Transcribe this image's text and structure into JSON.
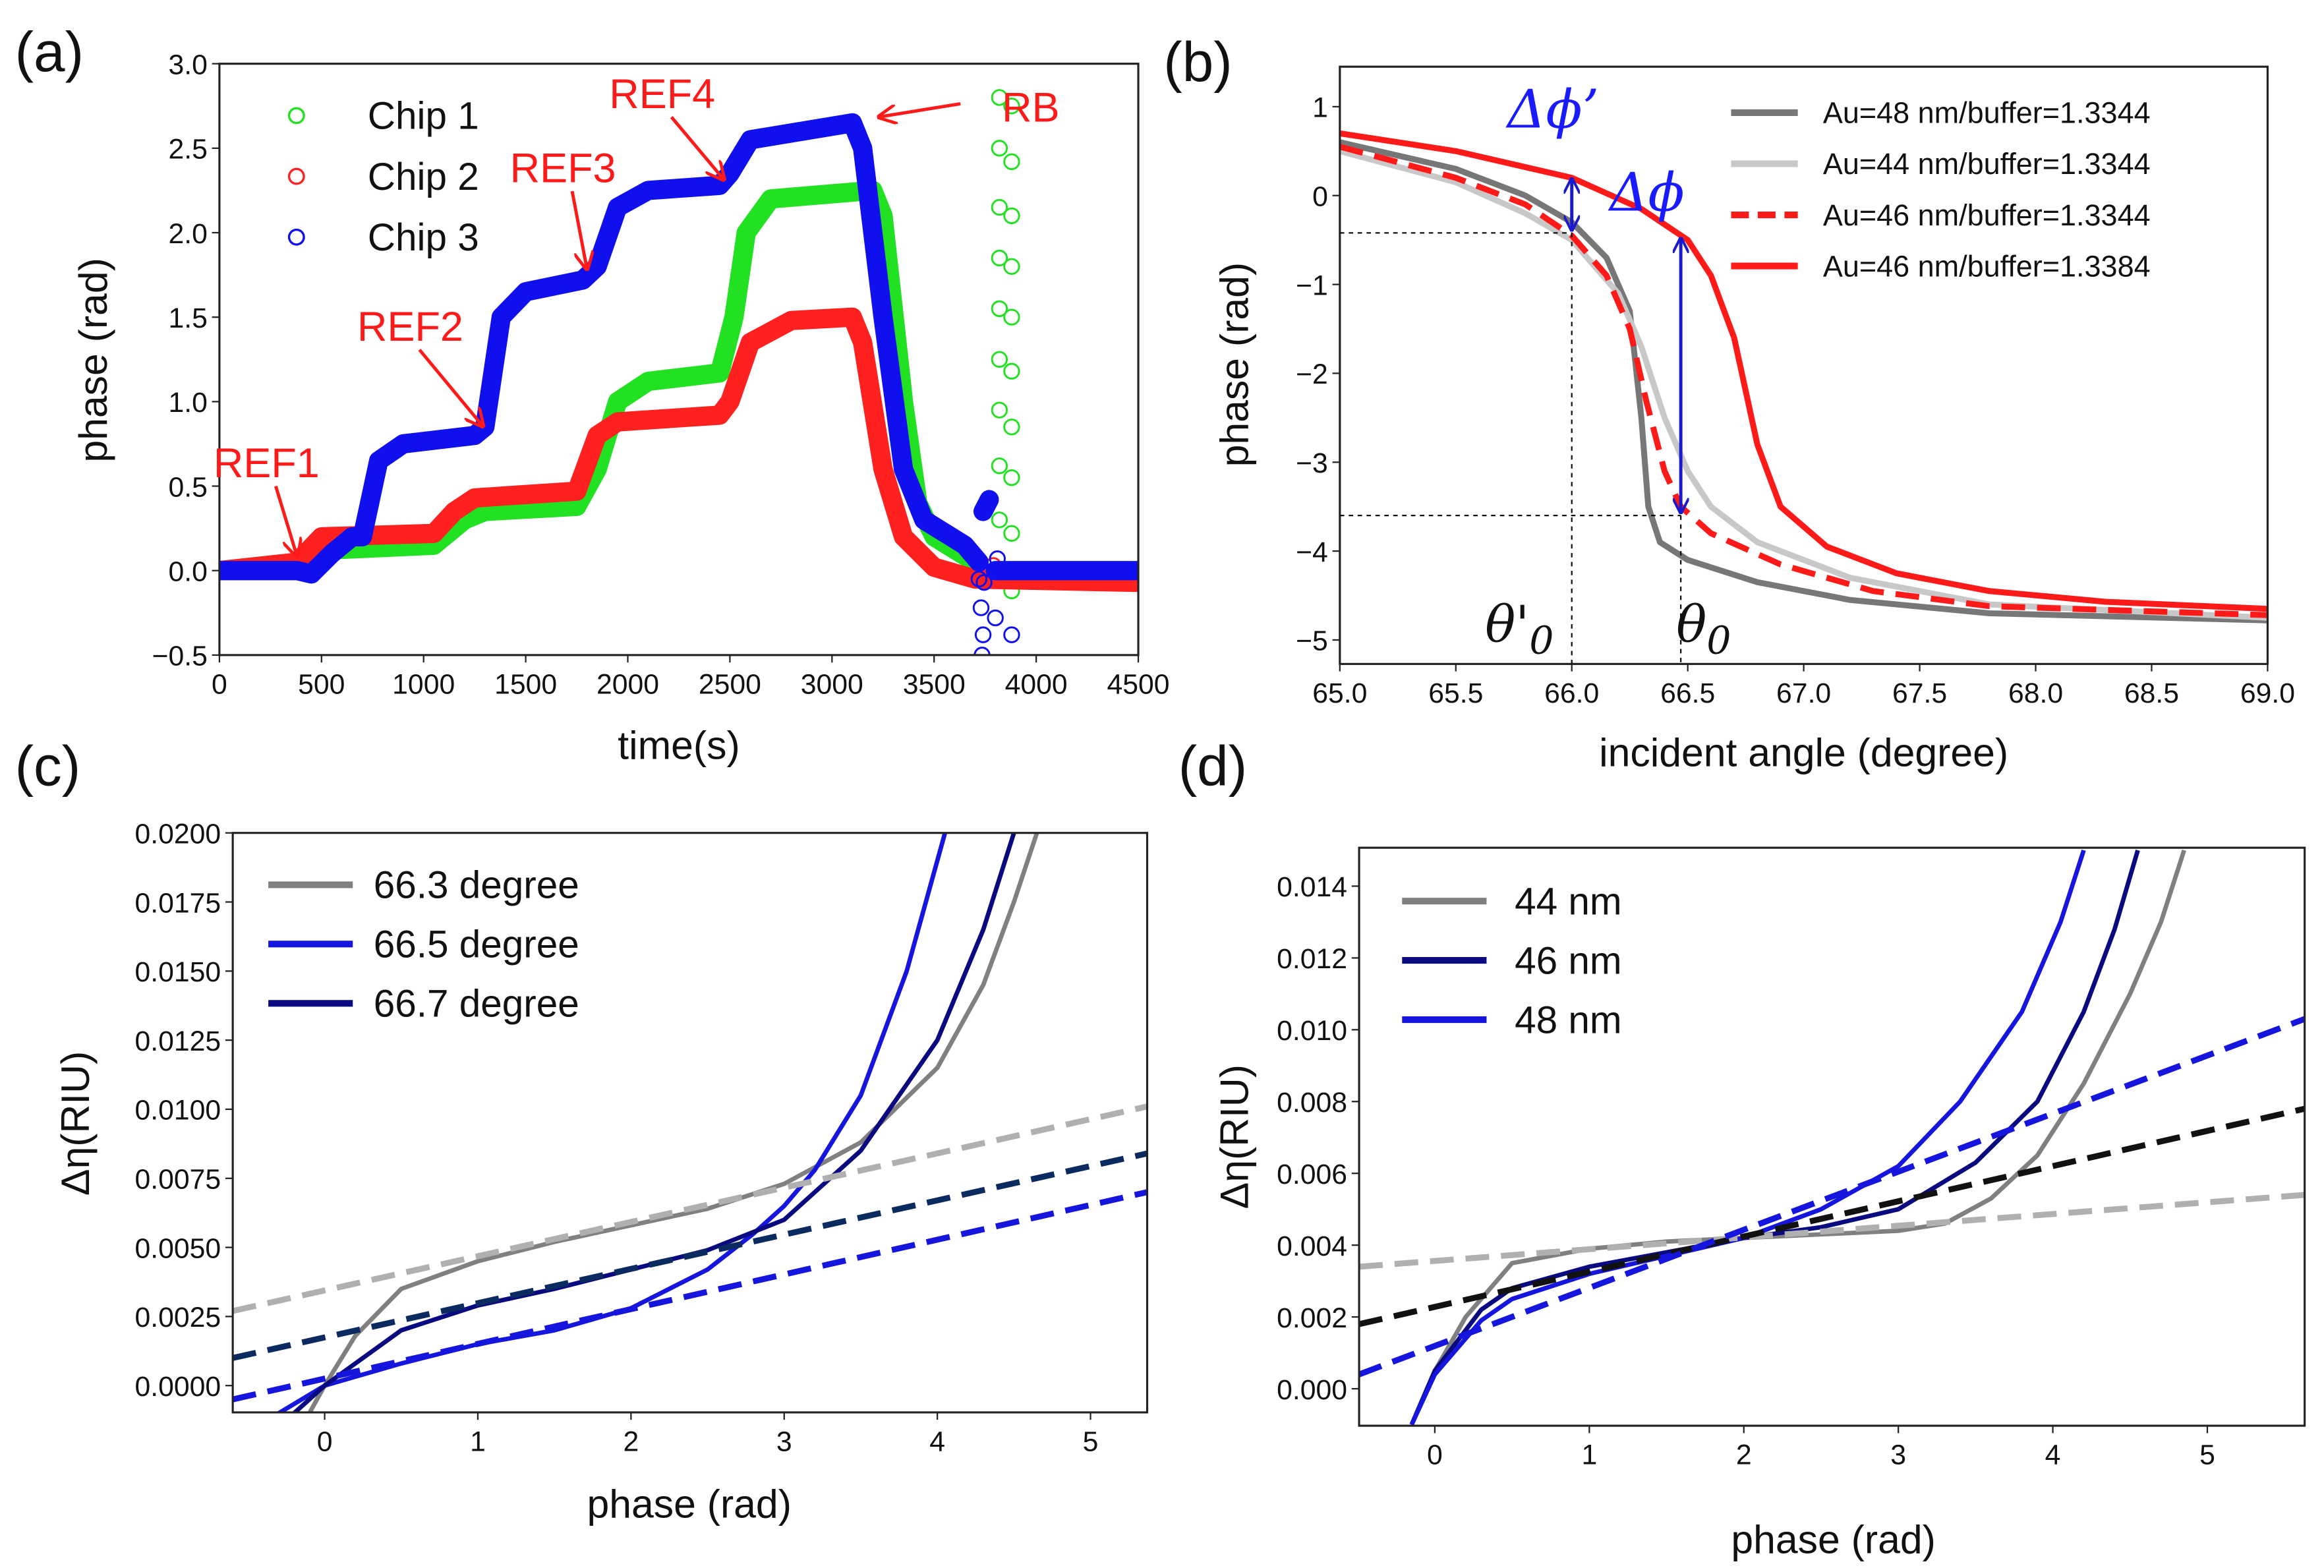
{
  "chart_data": [
    {
      "id": "a",
      "panel_label": "(a)",
      "type": "scatter",
      "xlabel": "time(s)",
      "ylabel": "phase (rad)",
      "xlim": [
        0,
        4500
      ],
      "ylim": [
        -0.5,
        3.0
      ],
      "xticks": [
        {
          "v": 0,
          "t": "0"
        },
        {
          "v": 500,
          "t": "500"
        },
        {
          "v": 1000,
          "t": "1000"
        },
        {
          "v": 1500,
          "t": "1500"
        },
        {
          "v": 2000,
          "t": "2000"
        },
        {
          "v": 2500,
          "t": "2500"
        },
        {
          "v": 3000,
          "t": "3000"
        },
        {
          "v": 3500,
          "t": "3500"
        },
        {
          "v": 4000,
          "t": "4000"
        },
        {
          "v": 4500,
          "t": "4500"
        }
      ],
      "yticks": [
        {
          "v": -0.5,
          "t": "−0.5"
        },
        {
          "v": 0,
          "t": "0.0"
        },
        {
          "v": 0.5,
          "t": "0.5"
        },
        {
          "v": 1.0,
          "t": "1.0"
        },
        {
          "v": 1.5,
          "t": "1.5"
        },
        {
          "v": 2.0,
          "t": "2.0"
        },
        {
          "v": 2.5,
          "t": "2.5"
        },
        {
          "v": 3.0,
          "t": "3.0"
        }
      ],
      "legend_position": "top-left",
      "series": [
        {
          "name": "Chip 1",
          "color": "#22e022",
          "style": "dense",
          "x": [
            0,
            400,
            500,
            1050,
            1200,
            1300,
            1750,
            1850,
            1950,
            2100,
            2450,
            2520,
            2580,
            2700,
            3200,
            3250,
            3350,
            3420,
            3500,
            3700
          ],
          "y": [
            0,
            0.05,
            0.12,
            0.15,
            0.3,
            0.35,
            0.38,
            0.6,
            1.0,
            1.12,
            1.17,
            1.5,
            2.0,
            2.2,
            2.25,
            2.1,
            1.0,
            0.4,
            0.2,
            0.05
          ],
          "sparse_x": [
            3820,
            3820,
            3820,
            3820,
            3820,
            3820,
            3820,
            3820,
            3820,
            3880,
            3880,
            3880,
            3880,
            3880,
            3880,
            3880,
            3880,
            3880,
            3880
          ],
          "sparse_y": [
            2.8,
            2.5,
            2.15,
            1.85,
            1.55,
            1.25,
            0.95,
            0.62,
            0.3,
            2.75,
            2.42,
            2.1,
            1.8,
            1.5,
            1.18,
            0.85,
            0.55,
            0.22,
            -0.12
          ]
        },
        {
          "name": "Chip 2",
          "color": "#ff2020",
          "style": "dense",
          "x": [
            0,
            380,
            500,
            1050,
            1150,
            1250,
            1750,
            1850,
            1950,
            2450,
            2500,
            2600,
            2800,
            3100,
            3150,
            3250,
            3350,
            3500,
            3700,
            4500
          ],
          "y": [
            0,
            0.05,
            0.2,
            0.22,
            0.35,
            0.43,
            0.47,
            0.8,
            0.88,
            0.92,
            1.0,
            1.35,
            1.48,
            1.5,
            1.35,
            0.6,
            0.2,
            0.02,
            -0.05,
            -0.07
          ],
          "sparse_x": [
            3790
          ],
          "sparse_y": [
            0.03
          ]
        },
        {
          "name": "Chip 3",
          "color": "#1010ee",
          "style": "dense",
          "x": [
            0,
            380,
            450,
            550,
            650,
            700,
            780,
            900,
            1250,
            1300,
            1380,
            1500,
            1780,
            1850,
            1950,
            2100,
            2450,
            2500,
            2600,
            3000,
            3100,
            3150,
            3250,
            3350,
            3450,
            3650,
            3720
          ],
          "y": [
            0,
            0,
            -0.02,
            0.1,
            0.2,
            0.2,
            0.65,
            0.75,
            0.8,
            0.85,
            1.5,
            1.65,
            1.72,
            1.8,
            2.15,
            2.25,
            2.28,
            2.35,
            2.55,
            2.63,
            2.65,
            2.5,
            1.5,
            0.6,
            0.3,
            0.15,
            0.05
          ],
          "x2": [
            3800,
            4500
          ],
          "y2": [
            0,
            0
          ],
          "blob_x": [
            3740,
            3770
          ],
          "blob_y": [
            0.35,
            0.42
          ],
          "sparse_x": [
            3720,
            3730,
            3740,
            3735,
            3800,
            3880,
            3810,
            3745
          ],
          "sparse_y": [
            -0.05,
            -0.22,
            -0.38,
            -0.5,
            -0.28,
            -0.38,
            0.07,
            -0.07
          ]
        }
      ],
      "annotations": [
        {
          "text": "REF1",
          "points_to": [
            380,
            0.05
          ]
        },
        {
          "text": "REF2",
          "points_to": [
            1290,
            0.82
          ]
        },
        {
          "text": "REF3",
          "points_to": [
            1800,
            1.75
          ]
        },
        {
          "text": "REF4",
          "points_to": [
            2470,
            2.28
          ]
        },
        {
          "text": "RB",
          "points_to": [
            3230,
            2.65
          ]
        }
      ]
    },
    {
      "id": "b",
      "panel_label": "(b)",
      "type": "line",
      "xlabel": "incident angle (degree)",
      "ylabel": "phase (rad)",
      "xlim": [
        65.0,
        69.0
      ],
      "ylim": [
        -5.27,
        1.45
      ],
      "xticks": [
        {
          "v": 65,
          "t": "65.0"
        },
        {
          "v": 65.5,
          "t": "65.5"
        },
        {
          "v": 66,
          "t": "66.0"
        },
        {
          "v": 66.5,
          "t": "66.5"
        },
        {
          "v": 67,
          "t": "67.0"
        },
        {
          "v": 67.5,
          "t": "67.5"
        },
        {
          "v": 68,
          "t": "68.0"
        },
        {
          "v": 68.5,
          "t": "68.5"
        },
        {
          "v": 69,
          "t": "69.0"
        }
      ],
      "yticks": [
        {
          "v": -5,
          "t": "−5"
        },
        {
          "v": -4,
          "t": "−4"
        },
        {
          "v": -3,
          "t": "−3"
        },
        {
          "v": -2,
          "t": "−2"
        },
        {
          "v": -1,
          "t": "−1"
        },
        {
          "v": 0,
          "t": "0"
        },
        {
          "v": 1,
          "t": "1"
        }
      ],
      "legend_position": "top-right",
      "series": [
        {
          "name": "Au=48 nm/buffer=1.3344",
          "color": "#777777",
          "style": "solid",
          "x": [
            65,
            65.5,
            65.8,
            66.0,
            66.15,
            66.25,
            66.3,
            66.33,
            66.38,
            66.5,
            66.8,
            67.2,
            67.8,
            69
          ],
          "y": [
            0.6,
            0.3,
            0,
            -0.3,
            -0.7,
            -1.3,
            -2.5,
            -3.5,
            -3.9,
            -4.1,
            -4.35,
            -4.55,
            -4.7,
            -4.78
          ]
        },
        {
          "name": "Au=44 nm/buffer=1.3344",
          "color": "#c8c8c8",
          "style": "solid",
          "x": [
            65,
            65.5,
            65.8,
            66.0,
            66.2,
            66.3,
            66.4,
            66.5,
            66.6,
            66.8,
            67.2,
            67.8,
            69
          ],
          "y": [
            0.5,
            0.15,
            -0.2,
            -0.5,
            -1.1,
            -1.7,
            -2.5,
            -3.1,
            -3.5,
            -3.9,
            -4.3,
            -4.6,
            -4.75
          ]
        },
        {
          "name": "Au=46 nm/buffer=1.3344",
          "color": "#ff1a1a",
          "style": "dashed",
          "x": [
            65,
            65.5,
            65.8,
            66.0,
            66.15,
            66.25,
            66.32,
            66.4,
            66.47,
            66.6,
            66.9,
            67.3,
            67.8,
            69
          ],
          "y": [
            0.55,
            0.2,
            -0.1,
            -0.45,
            -0.9,
            -1.5,
            -2.3,
            -3.1,
            -3.5,
            -3.8,
            -4.15,
            -4.45,
            -4.62,
            -4.72
          ]
        },
        {
          "name": "Au=46 nm/buffer=1.3384",
          "color": "#ff1a1a",
          "style": "solid",
          "x": [
            65,
            65.5,
            66.0,
            66.3,
            66.5,
            66.6,
            66.7,
            66.75,
            66.8,
            66.9,
            67.1,
            67.4,
            67.8,
            68.3,
            69
          ],
          "y": [
            0.7,
            0.5,
            0.2,
            -0.15,
            -0.5,
            -0.9,
            -1.6,
            -2.2,
            -2.8,
            -3.5,
            -3.95,
            -4.25,
            -4.45,
            -4.57,
            -4.65
          ]
        }
      ],
      "annotations": [
        {
          "text": "Δϕ’",
          "x": 66.0,
          "from": 0.22,
          "to": -0.42
        },
        {
          "text": "Δϕ",
          "x": 66.47,
          "from": -0.45,
          "to": -3.6
        },
        {
          "text": "θ'",
          "subscript": "0",
          "x": 66.0,
          "guide_y": -0.42
        },
        {
          "text": "θ",
          "subscript": "0",
          "x": 66.47,
          "guide_y": -3.6
        }
      ]
    },
    {
      "id": "c",
      "panel_label": "(c)",
      "type": "line",
      "xlabel": "phase (rad)",
      "ylabel": "Δη(RIU)",
      "xlim": [
        -0.6,
        5.37
      ],
      "ylim": [
        -0.00097,
        0.02
      ],
      "xticks": [
        {
          "v": 0,
          "t": "0"
        },
        {
          "v": 1,
          "t": "1"
        },
        {
          "v": 2,
          "t": "2"
        },
        {
          "v": 3,
          "t": "3"
        },
        {
          "v": 4,
          "t": "4"
        },
        {
          "v": 5,
          "t": "5"
        }
      ],
      "yticks": [
        {
          "v": 0,
          "t": "0.0000"
        },
        {
          "v": 0.0025,
          "t": "0.0025"
        },
        {
          "v": 0.005,
          "t": "0.0050"
        },
        {
          "v": 0.0075,
          "t": "0.0075"
        },
        {
          "v": 0.01,
          "t": "0.0100"
        },
        {
          "v": 0.0125,
          "t": "0.0125"
        },
        {
          "v": 0.015,
          "t": "0.0150"
        },
        {
          "v": 0.0175,
          "t": "0.0175"
        },
        {
          "v": 0.02,
          "t": "0.0200"
        }
      ],
      "legend_position": "top-left",
      "series": [
        {
          "name": "66.3 degree",
          "color": "#808080",
          "style": "solid",
          "x": [
            -0.1,
            0,
            0.2,
            0.5,
            1,
            1.5,
            2,
            2.5,
            3,
            3.5,
            4,
            4.3,
            4.5,
            4.65
          ],
          "y": [
            -0.001,
            0,
            0.0018,
            0.0035,
            0.0045,
            0.0052,
            0.0058,
            0.0064,
            0.0073,
            0.0088,
            0.0115,
            0.0145,
            0.0175,
            0.02
          ]
        },
        {
          "name": "66.5 degree",
          "color": "#1515dd",
          "style": "solid",
          "x": [
            -0.3,
            0,
            0.5,
            1,
            1.5,
            2,
            2.5,
            2.8,
            3,
            3.2,
            3.5,
            3.8,
            4.05
          ],
          "y": [
            -0.001,
            0,
            0.0008,
            0.0015,
            0.002,
            0.0028,
            0.0042,
            0.0055,
            0.0065,
            0.0078,
            0.0105,
            0.015,
            0.02
          ]
        },
        {
          "name": "66.7 degree",
          "color": "#0a0a80",
          "style": "solid",
          "x": [
            -0.2,
            0,
            0.5,
            1,
            1.5,
            2,
            2.5,
            3,
            3.5,
            4,
            4.3,
            4.5
          ],
          "y": [
            -0.001,
            0,
            0.002,
            0.0029,
            0.0035,
            0.0042,
            0.0049,
            0.006,
            0.0085,
            0.0125,
            0.0165,
            0.02
          ]
        },
        {
          "name": "fit 66.3",
          "color": "#b0b0b0",
          "style": "dashed",
          "legend": false,
          "x": [
            -0.6,
            5.37
          ],
          "y": [
            0.0027,
            0.0101
          ]
        },
        {
          "name": "fit 66.7",
          "color": "#0a2a60",
          "style": "dashed",
          "legend": false,
          "x": [
            -0.6,
            5.37
          ],
          "y": [
            0.001,
            0.0084
          ]
        },
        {
          "name": "fit 66.5",
          "color": "#1515dd",
          "style": "dashed",
          "legend": false,
          "x": [
            -0.6,
            5.37
          ],
          "y": [
            -0.0005,
            0.007
          ]
        }
      ]
    },
    {
      "id": "d",
      "panel_label": "(d)",
      "type": "line",
      "xlabel": "phase (rad)",
      "ylabel": "Δη(RIU)",
      "xlim": [
        -0.49,
        5.63
      ],
      "ylim": [
        -0.00103,
        0.01507
      ],
      "xticks": [
        {
          "v": 0,
          "t": "0"
        },
        {
          "v": 1,
          "t": "1"
        },
        {
          "v": 2,
          "t": "2"
        },
        {
          "v": 3,
          "t": "3"
        },
        {
          "v": 4,
          "t": "4"
        },
        {
          "v": 5,
          "t": "5"
        }
      ],
      "yticks": [
        {
          "v": 0,
          "t": "0.000"
        },
        {
          "v": 0.002,
          "t": "0.002"
        },
        {
          "v": 0.004,
          "t": "0.004"
        },
        {
          "v": 0.006,
          "t": "0.006"
        },
        {
          "v": 0.008,
          "t": "0.008"
        },
        {
          "v": 0.01,
          "t": "0.010"
        },
        {
          "v": 0.012,
          "t": "0.012"
        },
        {
          "v": 0.014,
          "t": "0.014"
        }
      ],
      "legend_position": "top-left",
      "series": [
        {
          "name": "44 nm",
          "color": "#808080",
          "style": "solid",
          "x": [
            -0.15,
            0,
            0.2,
            0.5,
            1,
            1.5,
            2,
            2.5,
            3,
            3.3,
            3.6,
            3.9,
            4.2,
            4.5,
            4.7,
            4.85
          ],
          "y": [
            -0.001,
            0.0005,
            0.002,
            0.0035,
            0.0039,
            0.0041,
            0.0042,
            0.0043,
            0.0044,
            0.0046,
            0.0053,
            0.0065,
            0.0085,
            0.011,
            0.013,
            0.015
          ]
        },
        {
          "name": "46 nm",
          "color": "#0a0a80",
          "style": "solid",
          "x": [
            -0.15,
            0,
            0.3,
            0.5,
            1,
            1.5,
            2,
            2.5,
            3,
            3.5,
            3.9,
            4.2,
            4.4,
            4.55
          ],
          "y": [
            -0.001,
            0.0005,
            0.0022,
            0.0028,
            0.0034,
            0.0038,
            0.0042,
            0.0045,
            0.005,
            0.0063,
            0.008,
            0.0105,
            0.0128,
            0.015
          ]
        },
        {
          "name": "48 nm",
          "color": "#1515dd",
          "style": "solid",
          "x": [
            -0.15,
            0,
            0.3,
            0.5,
            1,
            1.5,
            2,
            2.5,
            3,
            3.4,
            3.8,
            4.05,
            4.2
          ],
          "y": [
            -0.001,
            0.0004,
            0.0019,
            0.0025,
            0.0032,
            0.0037,
            0.0042,
            0.005,
            0.0062,
            0.008,
            0.0105,
            0.013,
            0.015
          ]
        },
        {
          "name": "fit 44",
          "color": "#b0b0b0",
          "style": "dashed",
          "legend": false,
          "x": [
            -0.49,
            5.63
          ],
          "y": [
            0.0034,
            0.0054
          ]
        },
        {
          "name": "fit 46",
          "color": "#111111",
          "style": "dashed",
          "legend": false,
          "x": [
            -0.49,
            5.63
          ],
          "y": [
            0.0018,
            0.0078
          ]
        },
        {
          "name": "fit 48",
          "color": "#1515dd",
          "style": "dashed",
          "legend": false,
          "x": [
            -0.49,
            5.63
          ],
          "y": [
            0.0004,
            0.0103
          ]
        }
      ]
    }
  ]
}
